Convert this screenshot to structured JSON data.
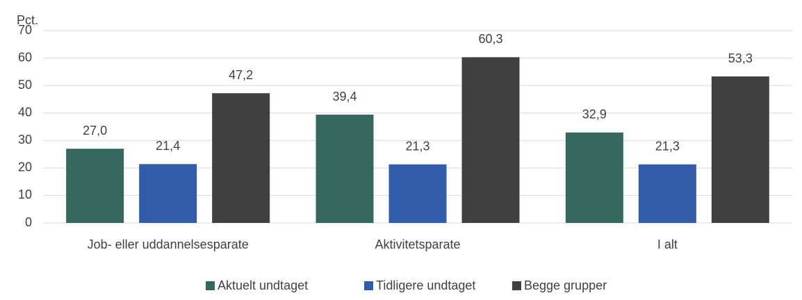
{
  "chart_data": {
    "type": "bar",
    "y_axis_label": "Pct.",
    "categories": [
      "Job- eller uddannelsesparate",
      "Aktivitetsparate",
      "I alt"
    ],
    "series": [
      {
        "name": "Aktuelt undtaget",
        "color": "#37665f",
        "values": [
          27.0,
          39.4,
          32.9
        ],
        "value_labels": [
          "27,0",
          "39,4",
          "32,9"
        ]
      },
      {
        "name": "Tidligere undtaget",
        "color": "#335ca8",
        "values": [
          21.4,
          21.3,
          21.3
        ],
        "value_labels": [
          "21,4",
          "21,3",
          "21,3"
        ]
      },
      {
        "name": "Begge grupper",
        "color": "#404040",
        "values": [
          47.2,
          60.3,
          53.3
        ],
        "value_labels": [
          "47,2",
          "60,3",
          "53,3"
        ]
      }
    ],
    "ylim": [
      0,
      70
    ],
    "yticks": [
      0,
      10,
      20,
      30,
      40,
      50,
      60,
      70
    ],
    "grid": true,
    "legend": "bottom"
  }
}
